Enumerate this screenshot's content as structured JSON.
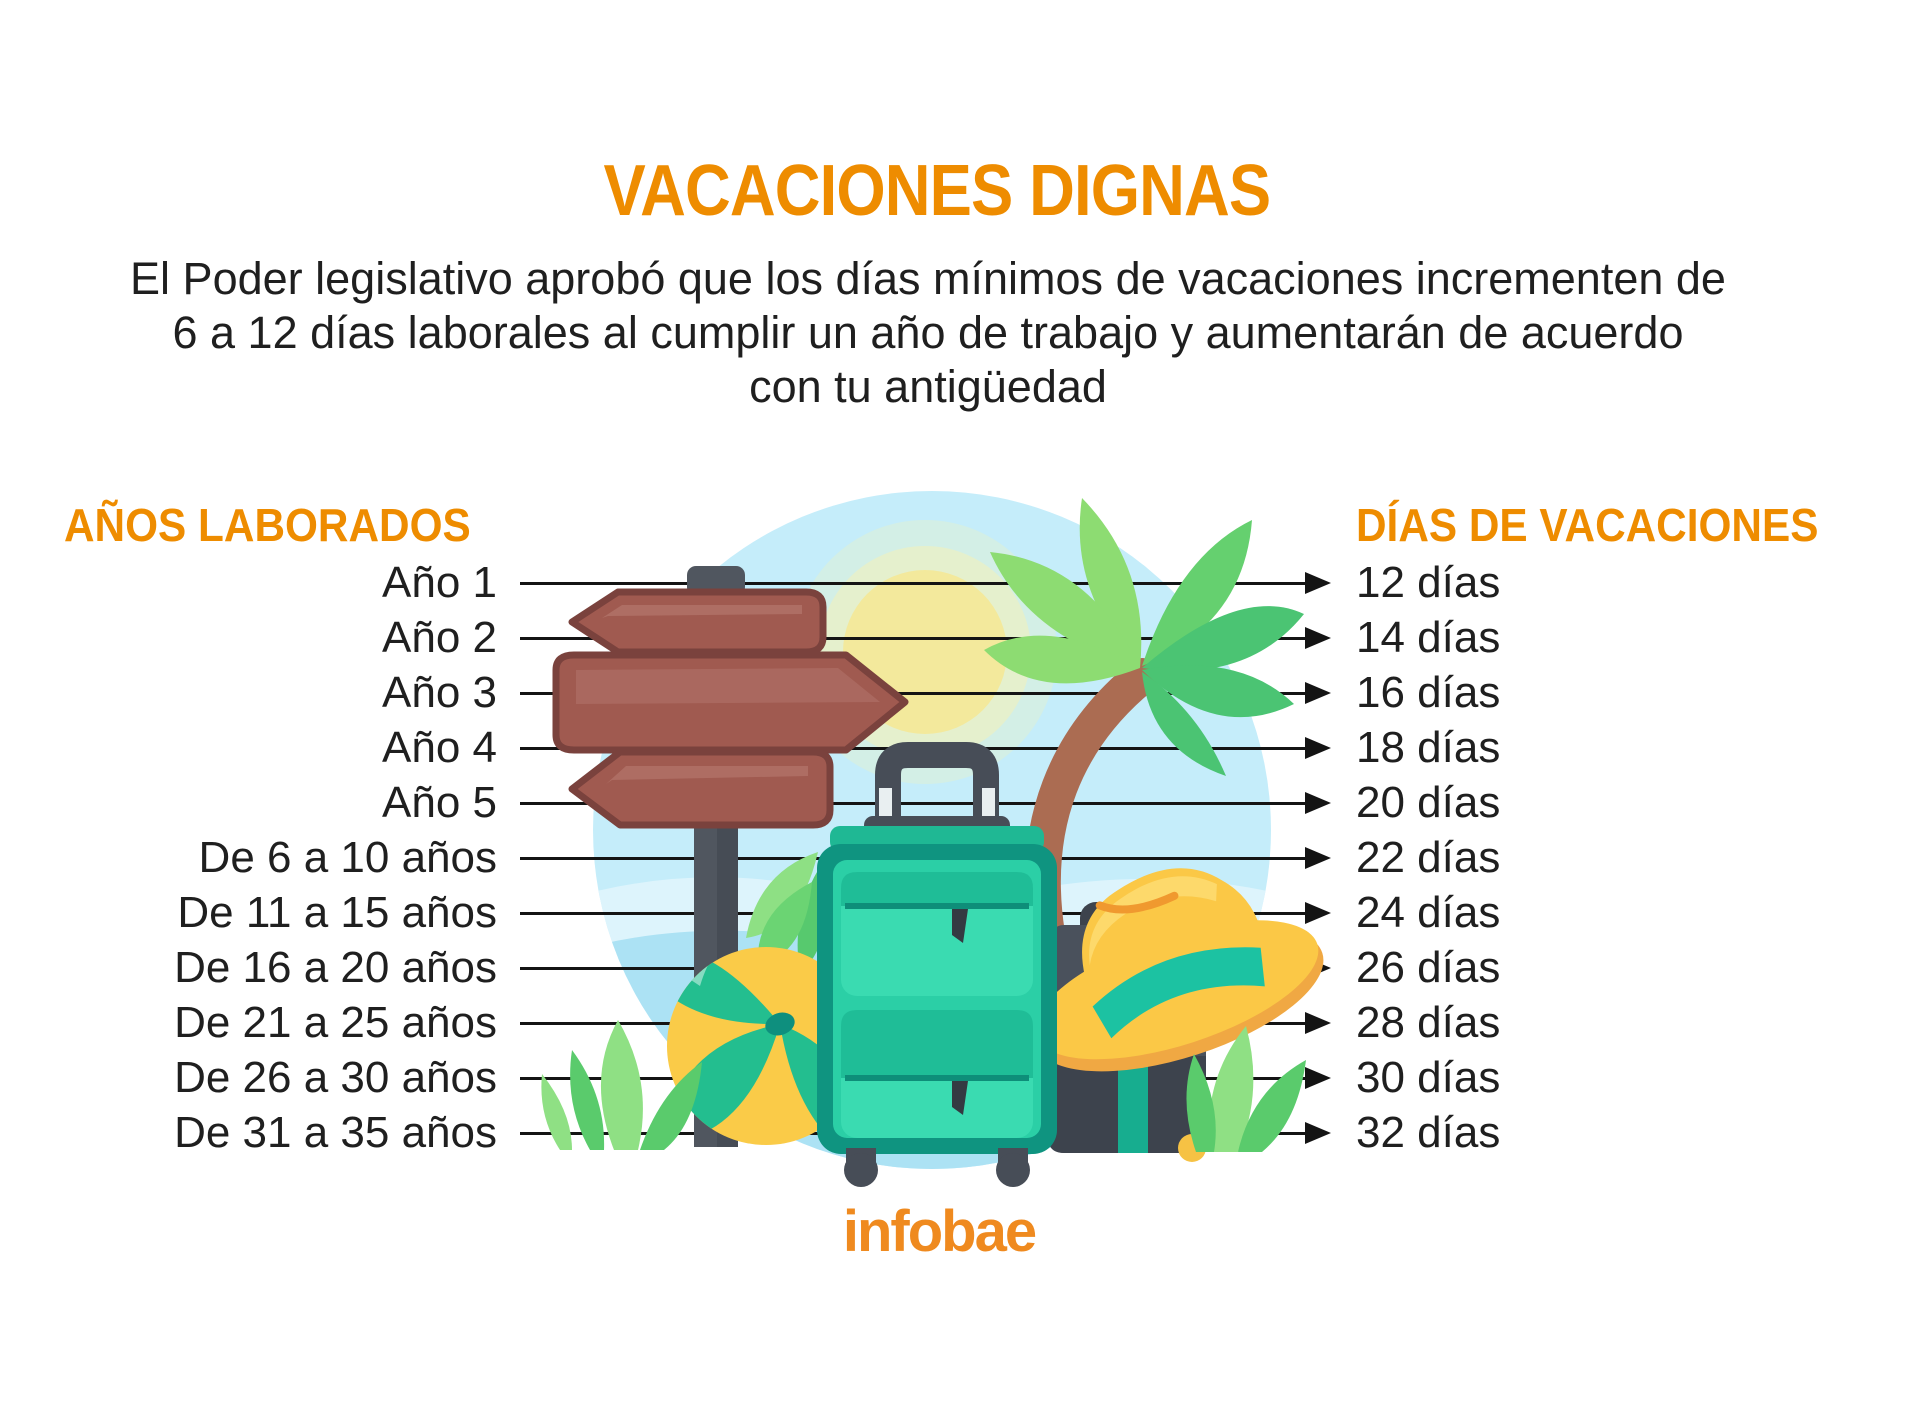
{
  "page": {
    "title": "VACACIONES DIGNAS",
    "subtitle_lines": [
      "El Poder legislativo aprobó que los días mínimos de vacaciones incrementen de",
      "6 a 12 días laborales al cumplir un año de trabajo y aumentarán de acuerdo",
      "con tu antigüedad"
    ],
    "source_logo": "infobae"
  },
  "table": {
    "left_header": "AÑOS LABORADOS",
    "right_header": "DÍAS DE VACACIONES",
    "rows": [
      {
        "years": "Año 1",
        "days": "12 días"
      },
      {
        "years": "Año 2",
        "days": "14 días"
      },
      {
        "years": "Año 3",
        "days": "16 días"
      },
      {
        "years": "Año 4",
        "days": "18 días"
      },
      {
        "years": "Año 5",
        "days": "20 días"
      },
      {
        "years": "De 6 a 10 años",
        "days": "22 días"
      },
      {
        "years": "De 11 a 15 años",
        "days": "24 días"
      },
      {
        "years": "De 16 a 20 años",
        "days": "26 días"
      },
      {
        "years": "De 21 a 25 años",
        "days": "28 días"
      },
      {
        "years": "De 26 a 30 años",
        "days": "30 días"
      },
      {
        "years": "De 31 a 35 años",
        "days": "32 días"
      }
    ]
  },
  "colors": {
    "accent_orange": "#EE8C00",
    "logo_orange": "#EF8A1F",
    "text_black": "#1F1F1F",
    "line_black": "#141414",
    "circle_blue": "#C5EDFA",
    "sun_yellow": "#F3E99C",
    "palm_green_light": "#8DDC72",
    "palm_green_dark": "#4BC473",
    "sign_brown": "#A05A50",
    "suitcase_teal": "#2BCFA6",
    "bag_gray": "#4A515C",
    "ball_yellow": "#FACB48",
    "ball_teal": "#23BE8F",
    "hat_yellow": "#FBC846"
  },
  "chart_data": {
    "type": "table",
    "title": "VACACIONES DIGNAS",
    "columns": [
      "Años laborados",
      "Días de vacaciones"
    ],
    "rows": [
      [
        "Año 1",
        12
      ],
      [
        "Año 2",
        14
      ],
      [
        "Año 3",
        16
      ],
      [
        "Año 4",
        18
      ],
      [
        "Año 5",
        20
      ],
      [
        "De 6 a 10 años",
        22
      ],
      [
        "De 11 a 15 años",
        24
      ],
      [
        "De 16 a 20 años",
        26
      ],
      [
        "De 21 a 25 años",
        28
      ],
      [
        "De 26 a 30 años",
        30
      ],
      [
        "De 31 a 35 años",
        32
      ]
    ]
  }
}
